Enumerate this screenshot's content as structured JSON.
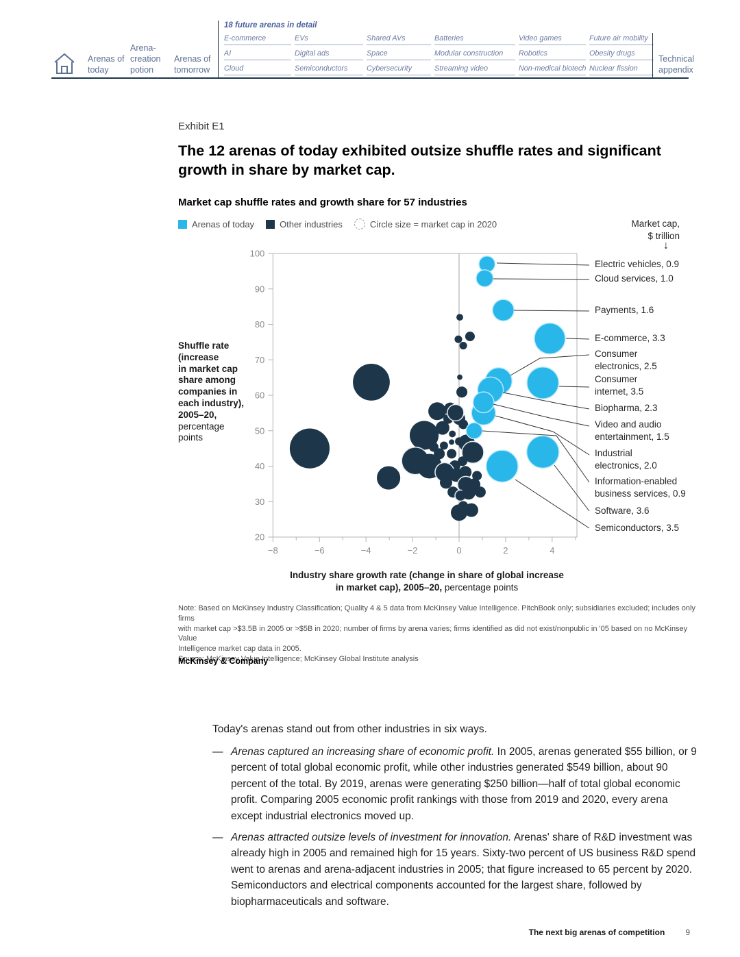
{
  "header": {
    "tabs": [
      {
        "label": "Arenas of today"
      },
      {
        "label": "Arena-creation potion"
      },
      {
        "label": "Arenas of tomorrow"
      }
    ],
    "arenas_title": "18 future arenas in detail",
    "arenas": [
      "E-commerce",
      "EVs",
      "Shared AVs",
      "Batteries",
      "Video games",
      "Future air mobility",
      "AI",
      "Digital ads",
      "Space",
      "Modular construction",
      "Robotics",
      "Obesity drugs",
      "Cloud",
      "Semiconductors",
      "Cybersecurity",
      "Streaming video",
      "Non-medical biotech",
      "Nuclear fission"
    ],
    "appendix": "Technical appendix"
  },
  "exhibit": {
    "eyebrow": "Exhibit E1",
    "title": "The 12 arenas of today exhibited outsize shuffle rates and significant growth in share by market cap.",
    "subtitle": "Market cap shuffle rates and growth share for 57 industries"
  },
  "legend": {
    "arenas": "Arenas of today",
    "others": "Other industries",
    "size": "Circle size = market cap in 2020",
    "cap_line1": "Market cap,",
    "cap_line2": "$ trillion",
    "arrow": "↓"
  },
  "chart_data": {
    "type": "scatter",
    "title": "Market cap shuffle rates and growth share for 57 industries",
    "xlabel_line1_bold": "Industry share growth rate (change in share of global increase",
    "xlabel_line2_bold": "in market cap), 2005–20,",
    "xlabel_line2_regular": " percentage points",
    "ylabel_bold_lines": [
      "Shuffle rate",
      "(increase",
      "in market cap",
      "share among",
      "companies in",
      "each industry),",
      "2005–20,"
    ],
    "ylabel_regular_lines": [
      "percentage",
      "points"
    ],
    "xlim": [
      -8,
      5
    ],
    "ylim": [
      20,
      100
    ],
    "x_ticks": [
      -8,
      -6,
      -4,
      -2,
      0,
      2,
      4
    ],
    "y_ticks": [
      100,
      90,
      80,
      70,
      60,
      50,
      40,
      30,
      20
    ],
    "grid": "vertical line at x=0 only",
    "legend_position": "top-left",
    "size_legend": "Circle size = market cap in 2020",
    "series": [
      {
        "name": "Arenas of today",
        "color": "#29B6E9",
        "points": [
          {
            "id": "ev",
            "label": "Electric vehicles",
            "market_cap_trillion": 0.9,
            "x": 1.2,
            "y": 97,
            "label_lines": [
              "Electric vehicles, 0.9"
            ]
          },
          {
            "id": "cloud",
            "label": "Cloud services",
            "market_cap_trillion": 1.0,
            "x": 1.1,
            "y": 93,
            "label_lines": [
              "Cloud services, 1.0"
            ]
          },
          {
            "id": "payments",
            "label": "Payments",
            "market_cap_trillion": 1.6,
            "x": 1.9,
            "y": 84,
            "label_lines": [
              "Payments, 1.6"
            ]
          },
          {
            "id": "ecom",
            "label": "E-commerce",
            "market_cap_trillion": 3.3,
            "x": 3.9,
            "y": 76,
            "label_lines": [
              "E-commerce, 3.3"
            ]
          },
          {
            "id": "cons_in",
            "label": "Consumer internet",
            "market_cap_trillion": 3.5,
            "x": 3.6,
            "y": 63.5,
            "label_lines": [
              "Consumer",
              "internet, 3.5"
            ]
          },
          {
            "id": "cons_el",
            "label": "Consumer electronics",
            "market_cap_trillion": 2.5,
            "x": 1.7,
            "y": 64,
            "label_lines": [
              "Consumer",
              "electronics, 2.5"
            ]
          },
          {
            "id": "industrial",
            "label": "Industrial electronics",
            "market_cap_trillion": 2.0,
            "x": 1.05,
            "y": 55,
            "label_lines": [
              "Industrial",
              "electronics, 2.0"
            ]
          },
          {
            "id": "biopharma",
            "label": "Biopharma",
            "market_cap_trillion": 2.3,
            "x": 1.35,
            "y": 61.5,
            "label_lines": [
              "Biopharma, 2.3"
            ]
          },
          {
            "id": "video",
            "label": "Video and audio entertainment",
            "market_cap_trillion": 1.5,
            "x": 1.05,
            "y": 58,
            "label_lines": [
              "Video and audio",
              "entertainment, 1.5"
            ]
          },
          {
            "id": "info",
            "label": "Information-enabled business services",
            "market_cap_trillion": 0.9,
            "x": 0.65,
            "y": 50,
            "label_lines": [
              "Information-enabled",
              "business services, 0.9"
            ]
          },
          {
            "id": "software",
            "label": "Software",
            "market_cap_trillion": 3.6,
            "x": 3.6,
            "y": 44,
            "label_lines": [
              "Software, 3.6"
            ]
          },
          {
            "id": "semis",
            "label": "Semiconductors",
            "market_cap_trillion": 3.5,
            "x": 1.85,
            "y": 40,
            "label_lines": [
              "Semiconductors, 3.5"
            ]
          }
        ]
      },
      {
        "name": "Other industries",
        "color": "#1D3649",
        "points": [
          {
            "x": -3.77,
            "y": 63.7,
            "cap": 4.7
          },
          {
            "x": -6.42,
            "y": 45.0,
            "cap": 5.5
          },
          {
            "x": -3.03,
            "y": 36.7,
            "cap": 1.9
          },
          {
            "x": -1.5,
            "y": 48.7,
            "cap": 2.9
          },
          {
            "x": 0.03,
            "y": 82.0,
            "cap": 0.16
          },
          {
            "x": 0.47,
            "y": 76.6,
            "cap": 0.32
          },
          {
            "x": -0.03,
            "y": 75.8,
            "cap": 0.2
          },
          {
            "x": 0.18,
            "y": 74.0,
            "cap": 0.2
          },
          {
            "x": 0.03,
            "y": 65.1,
            "cap": 0.1
          },
          {
            "x": 0.12,
            "y": 60.9,
            "cap": 0.42
          },
          {
            "x": -0.94,
            "y": 55.5,
            "cap": 1.1
          },
          {
            "x": -0.38,
            "y": 56.2,
            "cap": 0.53
          },
          {
            "x": -0.47,
            "y": 53.3,
            "cap": 0.32
          },
          {
            "x": 0.0,
            "y": 53.4,
            "cap": 0.53
          },
          {
            "x": -0.71,
            "y": 50.8,
            "cap": 0.65
          },
          {
            "x": -0.15,
            "y": 55.1,
            "cap": 0.94,
            "outlined": true
          },
          {
            "x": 0.18,
            "y": 51.8,
            "cap": 0.32
          },
          {
            "x": -0.29,
            "y": 49.1,
            "cap": 0.16
          },
          {
            "x": 0.53,
            "y": 49.3,
            "cap": 0.23
          },
          {
            "x": 0.0,
            "y": 47.0,
            "cap": 0.23
          },
          {
            "x": 0.32,
            "y": 46.6,
            "cap": 0.94
          },
          {
            "x": -0.65,
            "y": 45.8,
            "cap": 0.23
          },
          {
            "x": -0.32,
            "y": 46.8,
            "cap": 0.1
          },
          {
            "x": -1.09,
            "y": 45.4,
            "cap": 0.32
          },
          {
            "x": -0.85,
            "y": 43.5,
            "cap": 0.42
          },
          {
            "x": -0.32,
            "y": 43.5,
            "cap": 0.32
          },
          {
            "x": 0.59,
            "y": 43.9,
            "cap": 1.66,
            "outlined": true
          },
          {
            "x": -1.88,
            "y": 41.5,
            "cap": 2.6,
            "outlined": true
          },
          {
            "x": -1.27,
            "y": 40.0,
            "cap": 2.1
          },
          {
            "x": -0.18,
            "y": 40.1,
            "cap": 0.42
          },
          {
            "x": 0.15,
            "y": 41.4,
            "cap": 0.32
          },
          {
            "x": -0.62,
            "y": 38.3,
            "cap": 1.27,
            "outlined": true
          },
          {
            "x": -0.12,
            "y": 37.5,
            "cap": 0.65
          },
          {
            "x": 0.27,
            "y": 38.3,
            "cap": 0.53
          },
          {
            "x": 0.77,
            "y": 37.3,
            "cap": 0.32
          },
          {
            "x": -0.56,
            "y": 35.4,
            "cap": 0.53
          },
          {
            "x": 0.29,
            "y": 34.8,
            "cap": 0.94,
            "outlined": true
          },
          {
            "x": 0.65,
            "y": 34.8,
            "cap": 0.53
          },
          {
            "x": -0.26,
            "y": 32.7,
            "cap": 0.42
          },
          {
            "x": 0.06,
            "y": 31.7,
            "cap": 0.42,
            "outlined": true
          },
          {
            "x": 0.41,
            "y": 32.5,
            "cap": 0.65
          },
          {
            "x": 0.91,
            "y": 32.7,
            "cap": 0.42
          },
          {
            "x": 0.18,
            "y": 28.8,
            "cap": 0.32
          },
          {
            "x": 0.0,
            "y": 26.9,
            "cap": 0.94
          },
          {
            "x": 0.53,
            "y": 27.6,
            "cap": 0.65
          }
        ]
      }
    ]
  },
  "note": {
    "lines": [
      "Note: Based on McKinsey Industry Classification; Quality 4 & 5 data from McKinsey Value Intelligence. PitchBook only; subsidiaries excluded; includes only firms",
      "with market cap >$3.5B in 2005 or >$5B in 2020; number of firms by arena varies; firms identified as did not exist/nonpublic in '05 based on no McKinsey Value",
      "Intelligence market cap data in 2005."
    ],
    "source": "Source: McKinsey Value Intelligence; McKinsey Global Institute analysis",
    "brand": "McKinsey & Company"
  },
  "body": {
    "intro": "Today's arenas stand out from other industries in six ways.",
    "bullets": [
      {
        "marker": "—",
        "lead": "Arenas captured an increasing share of economic profit.",
        "text": " In 2005, arenas generated $55 billion, or 9 percent of total global economic profit, while other industries generated $549 billion, about 90 percent of the total. By 2019, arenas were generating $250 billion—half of total global economic profit. Comparing 2005 economic profit rankings with those from 2019 and 2020, every arena except industrial electronics moved up."
      },
      {
        "marker": "—",
        "lead": "Arenas attracted outsize levels of investment for innovation.",
        "text": " Arenas' share of R&D investment was already high in 2005 and remained high for 15 years. Sixty-two percent of US business R&D spend went to arenas and arena-adjacent industries in 2005; that figure increased to 65 percent by 2020. Semiconductors and electrical components accounted for the largest share, followed by biopharmaceuticals and software."
      }
    ]
  },
  "footer": {
    "title": "The next big arenas of competition",
    "page": "9"
  }
}
